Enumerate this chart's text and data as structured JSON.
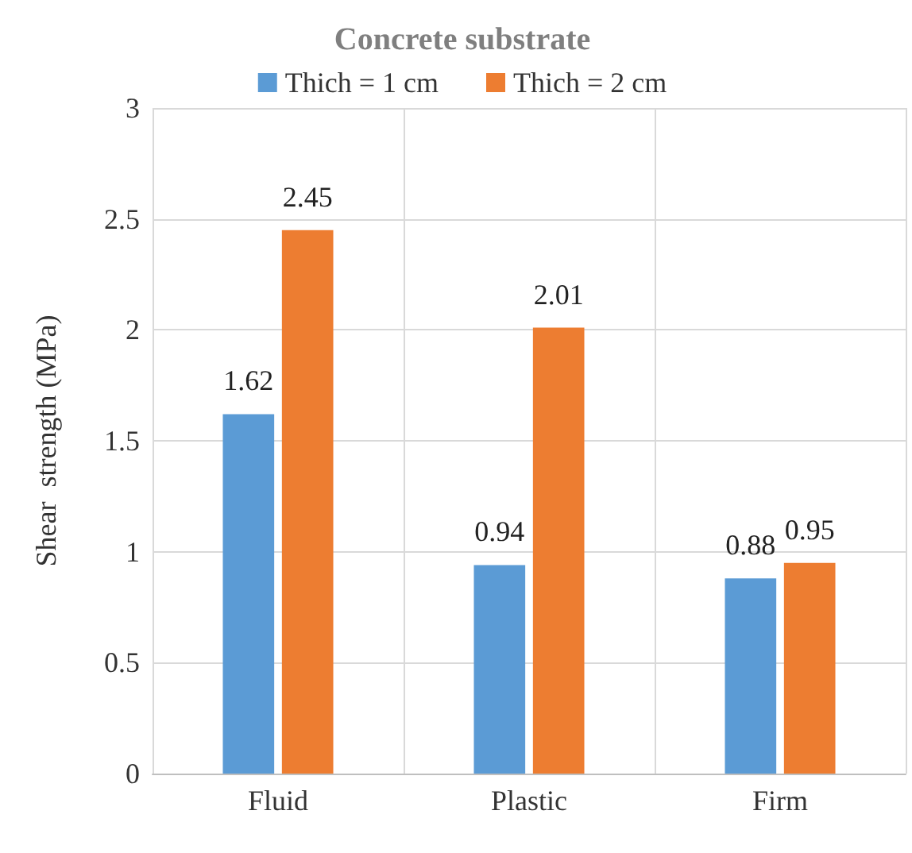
{
  "chart_data": {
    "type": "bar",
    "title": "Concrete substrate",
    "ylabel": "Shear  strength (MPa)",
    "categories": [
      "Fluid",
      "Plastic",
      "Firm"
    ],
    "series": [
      {
        "name": "Thich = 1 cm",
        "color": "#5b9bd5",
        "values": [
          1.62,
          0.94,
          0.88
        ]
      },
      {
        "name": "Thich = 2 cm",
        "color": "#ed7d31",
        "values": [
          2.45,
          2.01,
          0.95
        ]
      }
    ],
    "ylim": [
      0,
      3
    ],
    "yticks": [
      0,
      0.5,
      1,
      1.5,
      2,
      2.5,
      3
    ],
    "grid": true,
    "legend": "top",
    "data_labels": true
  }
}
